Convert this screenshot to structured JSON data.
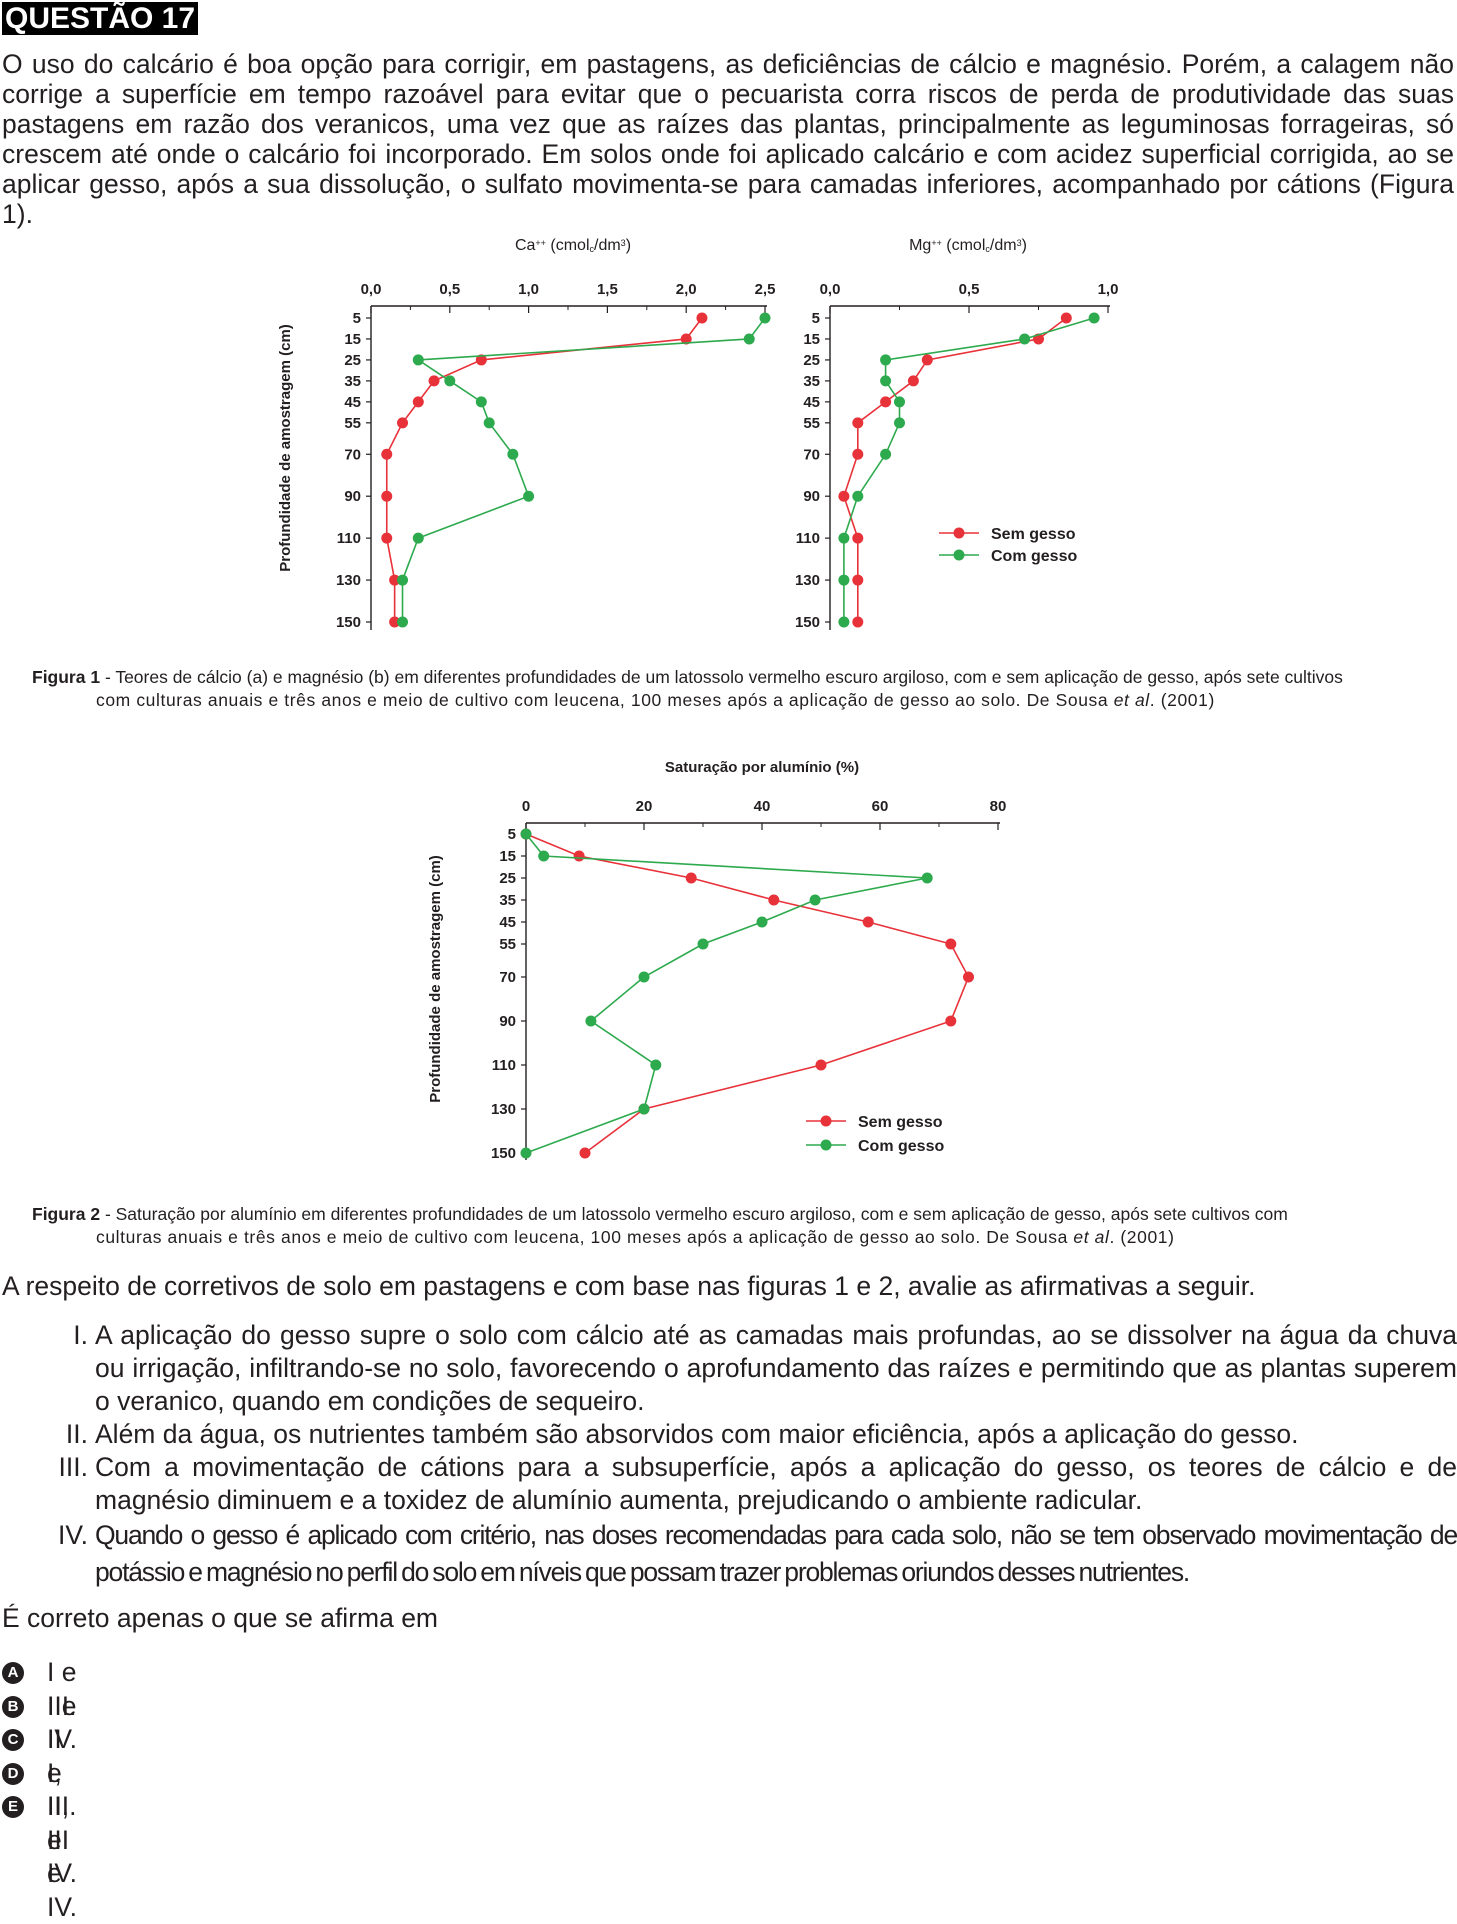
{
  "question": {
    "title": "QUESTÃO 17",
    "intro": "O uso do calcário é boa opção para corrigir, em pastagens, as deficiências de cálcio e magnésio. Porém, a calagem não corrige a superfície em tempo razoável para evitar que o pecuarista corra riscos de perda de produtividade das suas pastagens em razão dos veranicos, uma vez que as raízes das plantas, principalmente as leguminosas forrageiras, só crescem até onde o calcário foi incorporado. Em solos onde foi aplicado calcário e com acidez superficial corrigida, ao se aplicar gesso, após a sua dissolução, o sulfato movimenta-se para camadas inferiores, acompanhado por cátions (Figura 1).",
    "prompt": "A respeito de corretivos de solo em pastagens e com base nas figuras 1 e 2, avalie as afirmativas a seguir.",
    "statements": [
      {
        "numeral": "I.",
        "text": "A aplicação do gesso supre o solo com cálcio até as camadas mais profundas, ao se dissolver na água da chuva ou irrigação, infiltrando-se no solo, favorecendo o aprofundamento das raízes e permitindo que as plantas superem o veranico, quando em condições de sequeiro."
      },
      {
        "numeral": "II.",
        "text": "Além da água, os nutrientes também são absorvidos com maior eficiência, após a aplicação do gesso."
      },
      {
        "numeral": "III.",
        "text": "Com a movimentação de cátions para a subsuperfície, após a aplicação do gesso, os teores de cálcio e de magnésio diminuem e a toxidez de alumínio aumenta, prejudicando o ambiente radicular."
      },
      {
        "numeral": "IV.",
        "text": "Quando o gesso é aplicado com critério, nas doses recomendadas para cada solo, não se tem observado movimentação de potássio e magnésio no perfil do solo em níveis que possam trazer problemas oriundos desses nutrientes."
      }
    ],
    "answer_prompt": "É correto apenas o que se afirma em",
    "options": [
      {
        "letter": "A",
        "text": "I e III."
      },
      {
        "letter": "B",
        "text": "I e IV."
      },
      {
        "letter": "C",
        "text": "II e III."
      },
      {
        "letter": "D",
        "text": "I, II e IV."
      },
      {
        "letter": "E",
        "text": "II, III e IV."
      }
    ]
  },
  "figure1": {
    "caption_label": "Figura 1",
    "caption_line1": " - Teores de cálcio (a) e magnésio (b) em diferentes profundidades de um latossolo vermelho escuro argiloso, com e sem aplicação de gesso, após sete cultivos",
    "caption_line2_pre": "com culturas anuais e três anos e meio de cultivo com leucena, 100 meses após a aplicação de gesso ao solo. De Sousa ",
    "caption_etal": "et al",
    "caption_line2_post": ". (2001)"
  },
  "figure2": {
    "caption_label": "Figura 2",
    "caption_line1": " - Saturação por alumínio em diferentes profundidades de um latossolo vermelho escuro argiloso, com e sem aplicação de gesso, após sete cultivos com",
    "caption_line2_pre": "culturas anuais e três anos e meio de cultivo com leucena, 100 meses após a aplicação de gesso ao solo. De Sousa ",
    "caption_etal": "et al",
    "caption_line2_post": ". (2001)"
  },
  "chart_data": [
    {
      "type": "line",
      "title": "Ca++ (cmolc/dm3)",
      "title_main": "Ca",
      "title_sup": "++",
      "title_unit_a": " (cmol",
      "title_unit_sub": "c",
      "title_unit_b": "/dm",
      "title_unit_sup": "3",
      "title_unit_c": ")",
      "ylabel": "Profundidade de amostragem (cm)",
      "x_ticks": [
        "0,0",
        "0,5",
        "1,0",
        "1,5",
        "2,0",
        "2,5"
      ],
      "x_tick_values": [
        0,
        0.5,
        1.0,
        1.5,
        2.0,
        2.5
      ],
      "xlim": [
        0,
        2.5
      ],
      "y_ticks": [
        "5",
        "15",
        "25",
        "35",
        "45",
        "55",
        "70",
        "90",
        "110",
        "130",
        "150"
      ],
      "y_tick_values": [
        5,
        15,
        25,
        35,
        45,
        55,
        70,
        90,
        110,
        130,
        150
      ],
      "ylim": [
        5,
        150
      ],
      "y_inverted": true,
      "y": [
        5,
        15,
        25,
        35,
        45,
        55,
        70,
        90,
        110,
        130,
        150
      ],
      "series": [
        {
          "name": "Sem gesso",
          "color": "#e8323a",
          "values": [
            2.1,
            2.0,
            0.7,
            0.4,
            0.3,
            0.2,
            0.1,
            0.1,
            0.1,
            0.15,
            0.15
          ]
        },
        {
          "name": "Com gesso",
          "color": "#2eaa4e",
          "values": [
            2.5,
            2.4,
            0.3,
            0.5,
            0.7,
            0.75,
            0.9,
            1.0,
            0.3,
            0.2,
            0.2
          ]
        }
      ],
      "legend": false
    },
    {
      "type": "line",
      "title": "Mg++ (cmolc/dm3)",
      "title_main": "Mg",
      "title_sup": "++",
      "title_unit_a": " (cmol",
      "title_unit_sub": "c",
      "title_unit_b": "/dm",
      "title_unit_sup": "3",
      "title_unit_c": ")",
      "ylabel": "",
      "x_ticks": [
        "0,0",
        "0,5",
        "1,0"
      ],
      "x_tick_values": [
        0,
        0.5,
        1.0
      ],
      "xlim": [
        0,
        1.0
      ],
      "y_ticks": [
        "5",
        "15",
        "25",
        "35",
        "45",
        "55",
        "70",
        "90",
        "110",
        "130",
        "150"
      ],
      "y_tick_values": [
        5,
        15,
        25,
        35,
        45,
        55,
        70,
        90,
        110,
        130,
        150
      ],
      "ylim": [
        5,
        150
      ],
      "y_inverted": true,
      "y": [
        5,
        15,
        25,
        35,
        45,
        55,
        70,
        90,
        110,
        130,
        150
      ],
      "series": [
        {
          "name": "Sem gesso",
          "color": "#e8323a",
          "values": [
            0.85,
            0.75,
            0.35,
            0.3,
            0.2,
            0.1,
            0.1,
            0.05,
            0.1,
            0.1,
            0.1
          ]
        },
        {
          "name": "Com gesso",
          "color": "#2eaa4e",
          "values": [
            0.95,
            0.7,
            0.2,
            0.2,
            0.25,
            0.25,
            0.2,
            0.1,
            0.05,
            0.05,
            0.05
          ]
        }
      ],
      "legend": true,
      "legend_position": "right"
    },
    {
      "type": "line",
      "title": "Saturação por alumínio (%)",
      "ylabel": "Profundidade de amostragem (cm)",
      "x_ticks": [
        "0",
        "20",
        "40",
        "60",
        "80"
      ],
      "x_tick_values": [
        0,
        20,
        40,
        60,
        80
      ],
      "xlim": [
        0,
        80
      ],
      "y_ticks": [
        "5",
        "15",
        "25",
        "35",
        "45",
        "55",
        "70",
        "90",
        "110",
        "130",
        "150"
      ],
      "y_tick_values": [
        5,
        15,
        25,
        35,
        45,
        55,
        70,
        90,
        110,
        130,
        150
      ],
      "ylim": [
        5,
        150
      ],
      "y_inverted": true,
      "y": [
        5,
        15,
        25,
        35,
        45,
        55,
        70,
        90,
        110,
        130,
        150
      ],
      "series": [
        {
          "name": "Sem gesso",
          "color": "#e8323a",
          "values": [
            0,
            9,
            28,
            42,
            58,
            72,
            75,
            72,
            50,
            20,
            10
          ]
        },
        {
          "name": "Com gesso",
          "color": "#2eaa4e",
          "values": [
            0,
            3,
            68,
            49,
            40,
            30,
            20,
            11,
            22,
            20,
            0
          ]
        }
      ],
      "legend": true,
      "legend_position": "bottom-right"
    }
  ]
}
